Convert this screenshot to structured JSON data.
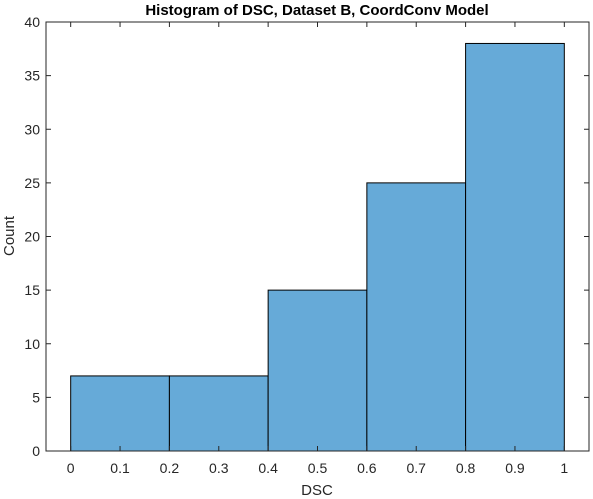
{
  "chart_data": {
    "type": "bar",
    "title": "Histogram of DSC, Dataset B, CoordConv Model",
    "xlabel": "DSC",
    "ylabel": "Count",
    "bins": [
      {
        "start": 0.0,
        "end": 0.2,
        "count": 7
      },
      {
        "start": 0.2,
        "end": 0.4,
        "count": 7
      },
      {
        "start": 0.4,
        "end": 0.6,
        "count": 15
      },
      {
        "start": 0.6,
        "end": 0.8,
        "count": 25
      },
      {
        "start": 0.8,
        "end": 1.0,
        "count": 38
      }
    ],
    "xlim": [
      -0.05,
      1.05
    ],
    "ylim": [
      0,
      40
    ],
    "xticks": [
      "0",
      "0.1",
      "0.2",
      "0.3",
      "0.4",
      "0.5",
      "0.6",
      "0.7",
      "0.8",
      "0.9",
      "1"
    ],
    "yticks": [
      "0",
      "5",
      "10",
      "15",
      "20",
      "25",
      "30",
      "35",
      "40"
    ],
    "grid": false,
    "bar_color": "#66aad8",
    "edge_color": "#000000"
  }
}
